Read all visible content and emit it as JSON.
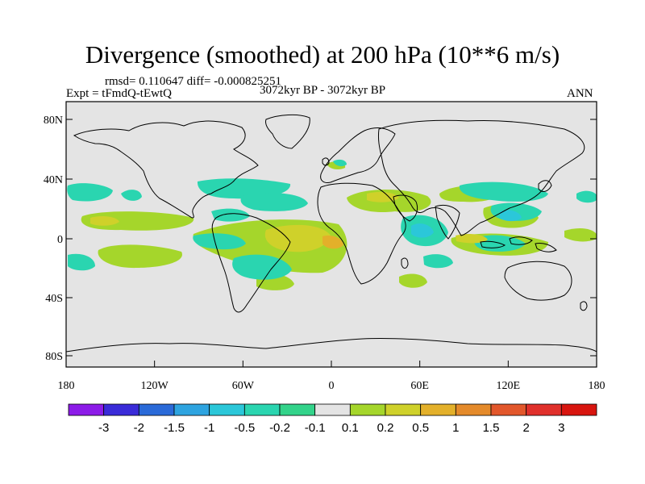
{
  "title": "Divergence (smoothed) at 200 hPa (10**6 m/s)",
  "stats": "rmsd= 0.110647  diff= -0.000825251",
  "experiment": "Expt = tFmdQ-tEwtQ",
  "period": "3072kyr BP - 3072kyr BP",
  "season": "ANN",
  "lat_ticks": [
    "80N",
    "40N",
    "0",
    "40S",
    "80S"
  ],
  "lon_ticks": [
    "180",
    "120W",
    "60W",
    "0",
    "60E",
    "120E",
    "180"
  ],
  "colorbar": {
    "labels": [
      "-3",
      "-2",
      "-1.5",
      "-1",
      "-0.5",
      "-0.2",
      "-0.1",
      "0.1",
      "0.2",
      "0.5",
      "1",
      "1.5",
      "2",
      "3"
    ],
    "colors": [
      "#8c1be8",
      "#3a2bd8",
      "#2a6ad8",
      "#2ea4e0",
      "#2bc7d9",
      "#2ad5b0",
      "#33d38a",
      "#e4e4e4",
      "#a5d62b",
      "#cfd12a",
      "#e3b02a",
      "#e48a2a",
      "#e2572b",
      "#e0302b",
      "#d8150f"
    ]
  },
  "colors": {
    "ocean_bg": "#e4e4e4",
    "coast": "#000000"
  },
  "anomaly_levels": [
    "0.2",
    "-0.2",
    "0.5",
    "-0.5",
    "1"
  ]
}
